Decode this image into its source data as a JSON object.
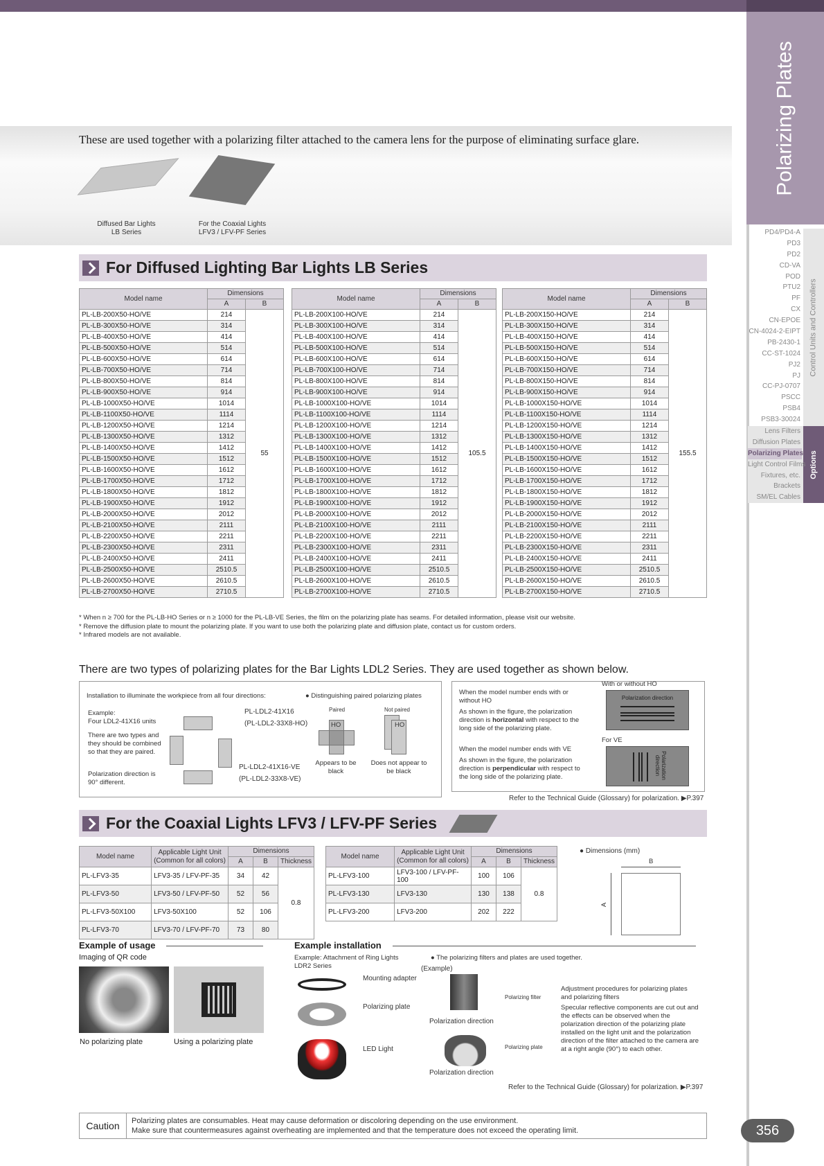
{
  "sidebar": {
    "title": "Polarizing Plates",
    "group1_label": "Control Units and Controllers",
    "group1": [
      "PD4/PD4-A",
      "PD3",
      "PD2",
      "CD-VA",
      "POD",
      "PTU2",
      "PF",
      "CX",
      "CN-EPOE",
      "CN-4024-2-EIPT",
      "PB-2430-1",
      "CC-ST-1024",
      "PJ2",
      "PJ",
      "CC-PJ-0707",
      "PSCC",
      "PSB4",
      "PSB3-30024"
    ],
    "group2_label": "Options",
    "group2": [
      "Lens Filters",
      "Diffusion Plates",
      "Polarizing Plates",
      "Light Control Films",
      "Fixtures, etc.",
      "Brackets",
      "SM/EL Cables"
    ],
    "active": "Polarizing Plates",
    "accent": "#6f5b77",
    "title_bg": "#a797ad"
  },
  "intro": {
    "text": "These are used together with a polarizing filter attached to the camera lens for the purpose of eliminating surface glare.",
    "img1_caption": [
      "Diffused Bar Lights",
      "LB Series"
    ],
    "img2_caption": [
      "For the Coaxial Lights",
      "LFV3 / LFV-PF Series"
    ]
  },
  "lb": {
    "title": "For Diffused Lighting Bar Lights LB Series",
    "headers": {
      "model": "Model name",
      "dims": "Dimensions",
      "a": "A",
      "b": "B"
    },
    "tables": [
      {
        "b": "55",
        "rows": [
          [
            "PL-LB-200X50-HO/VE",
            "214"
          ],
          [
            "PL-LB-300X50-HO/VE",
            "314"
          ],
          [
            "PL-LB-400X50-HO/VE",
            "414"
          ],
          [
            "PL-LB-500X50-HO/VE",
            "514"
          ],
          [
            "PL-LB-600X50-HO/VE",
            "614"
          ],
          [
            "PL-LB-700X50-HO/VE",
            "714"
          ],
          [
            "PL-LB-800X50-HO/VE",
            "814"
          ],
          [
            "PL-LB-900X50-HO/VE",
            "914"
          ],
          [
            "PL-LB-1000X50-HO/VE",
            "1014"
          ],
          [
            "PL-LB-1100X50-HO/VE",
            "1114"
          ],
          [
            "PL-LB-1200X50-HO/VE",
            "1214"
          ],
          [
            "PL-LB-1300X50-HO/VE",
            "1312"
          ],
          [
            "PL-LB-1400X50-HO/VE",
            "1412"
          ],
          [
            "PL-LB-1500X50-HO/VE",
            "1512"
          ],
          [
            "PL-LB-1600X50-HO/VE",
            "1612"
          ],
          [
            "PL-LB-1700X50-HO/VE",
            "1712"
          ],
          [
            "PL-LB-1800X50-HO/VE",
            "1812"
          ],
          [
            "PL-LB-1900X50-HO/VE",
            "1912"
          ],
          [
            "PL-LB-2000X50-HO/VE",
            "2012"
          ],
          [
            "PL-LB-2100X50-HO/VE",
            "2111"
          ],
          [
            "PL-LB-2200X50-HO/VE",
            "2211"
          ],
          [
            "PL-LB-2300X50-HO/VE",
            "2311"
          ],
          [
            "PL-LB-2400X50-HO/VE",
            "2411"
          ],
          [
            "PL-LB-2500X50-HO/VE",
            "2510.5"
          ],
          [
            "PL-LB-2600X50-HO/VE",
            "2610.5"
          ],
          [
            "PL-LB-2700X50-HO/VE",
            "2710.5"
          ]
        ]
      },
      {
        "b": "105.5",
        "rows": [
          [
            "PL-LB-200X100-HO/VE",
            "214"
          ],
          [
            "PL-LB-300X100-HO/VE",
            "314"
          ],
          [
            "PL-LB-400X100-HO/VE",
            "414"
          ],
          [
            "PL-LB-500X100-HO/VE",
            "514"
          ],
          [
            "PL-LB-600X100-HO/VE",
            "614"
          ],
          [
            "PL-LB-700X100-HO/VE",
            "714"
          ],
          [
            "PL-LB-800X100-HO/VE",
            "814"
          ],
          [
            "PL-LB-900X100-HO/VE",
            "914"
          ],
          [
            "PL-LB-1000X100-HO/VE",
            "1014"
          ],
          [
            "PL-LB-1100X100-HO/VE",
            "1114"
          ],
          [
            "PL-LB-1200X100-HO/VE",
            "1214"
          ],
          [
            "PL-LB-1300X100-HO/VE",
            "1312"
          ],
          [
            "PL-LB-1400X100-HO/VE",
            "1412"
          ],
          [
            "PL-LB-1500X100-HO/VE",
            "1512"
          ],
          [
            "PL-LB-1600X100-HO/VE",
            "1612"
          ],
          [
            "PL-LB-1700X100-HO/VE",
            "1712"
          ],
          [
            "PL-LB-1800X100-HO/VE",
            "1812"
          ],
          [
            "PL-LB-1900X100-HO/VE",
            "1912"
          ],
          [
            "PL-LB-2000X100-HO/VE",
            "2012"
          ],
          [
            "PL-LB-2100X100-HO/VE",
            "2111"
          ],
          [
            "PL-LB-2200X100-HO/VE",
            "2211"
          ],
          [
            "PL-LB-2300X100-HO/VE",
            "2311"
          ],
          [
            "PL-LB-2400X100-HO/VE",
            "2411"
          ],
          [
            "PL-LB-2500X100-HO/VE",
            "2510.5"
          ],
          [
            "PL-LB-2600X100-HO/VE",
            "2610.5"
          ],
          [
            "PL-LB-2700X100-HO/VE",
            "2710.5"
          ]
        ]
      },
      {
        "b": "155.5",
        "rows": [
          [
            "PL-LB-200X150-HO/VE",
            "214"
          ],
          [
            "PL-LB-300X150-HO/VE",
            "314"
          ],
          [
            "PL-LB-400X150-HO/VE",
            "414"
          ],
          [
            "PL-LB-500X150-HO/VE",
            "514"
          ],
          [
            "PL-LB-600X150-HO/VE",
            "614"
          ],
          [
            "PL-LB-700X150-HO/VE",
            "714"
          ],
          [
            "PL-LB-800X150-HO/VE",
            "814"
          ],
          [
            "PL-LB-900X150-HO/VE",
            "914"
          ],
          [
            "PL-LB-1000X150-HO/VE",
            "1014"
          ],
          [
            "PL-LB-1100X150-HO/VE",
            "1114"
          ],
          [
            "PL-LB-1200X150-HO/VE",
            "1214"
          ],
          [
            "PL-LB-1300X150-HO/VE",
            "1312"
          ],
          [
            "PL-LB-1400X150-HO/VE",
            "1412"
          ],
          [
            "PL-LB-1500X150-HO/VE",
            "1512"
          ],
          [
            "PL-LB-1600X150-HO/VE",
            "1612"
          ],
          [
            "PL-LB-1700X150-HO/VE",
            "1712"
          ],
          [
            "PL-LB-1800X150-HO/VE",
            "1812"
          ],
          [
            "PL-LB-1900X150-HO/VE",
            "1912"
          ],
          [
            "PL-LB-2000X150-HO/VE",
            "2012"
          ],
          [
            "PL-LB-2100X150-HO/VE",
            "2111"
          ],
          [
            "PL-LB-2200X150-HO/VE",
            "2211"
          ],
          [
            "PL-LB-2300X150-HO/VE",
            "2311"
          ],
          [
            "PL-LB-2400X150-HO/VE",
            "2411"
          ],
          [
            "PL-LB-2500X150-HO/VE",
            "2510.5"
          ],
          [
            "PL-LB-2600X150-HO/VE",
            "2610.5"
          ],
          [
            "PL-LB-2700X150-HO/VE",
            "2710.5"
          ]
        ]
      }
    ],
    "notes": [
      "* When n ≥ 700 for the PL-LB-HO Series or n ≥ 1000 for the PL-LB-VE Series, the film on the polarizing plate has seams. For detailed information, please visit our website.",
      "* Remove the diffusion plate to mount the polarizing plate. If you want to use both the polarizing plate and diffusion plate, contact us for custom orders.",
      "* Infrared models are not available."
    ]
  },
  "ldl2": {
    "heading": "There are two types of polarizing plates for the Bar Lights LDL2 Series. They are used together as shown below.",
    "install": "Installation to illuminate the workpiece from all four directions:",
    "example": "Example:",
    "example_units": "Four LDL2-41X16 units",
    "two_types": "There are two types and they should be combined so that they are paired.",
    "pol_diff": "Polarization direction is 90° different.",
    "pl1": "PL-LDL2-41X16",
    "pl1b": "(PL-LDL2-33X8-HO)",
    "pl2": "PL-LDL2-41X16-VE",
    "pl2b": "(PL-LDL2-33X8-VE)",
    "distinguish": "● Distinguishing paired polarizing plates",
    "paired": "Paired",
    "not_paired": "Not paired",
    "ho": "HO",
    "appears": "Appears to be black",
    "not_appears": "Does not appear to be black",
    "ho_title": "When the model number ends with or without HO",
    "ho_desc_pre": "As shown in the figure, the polarization direction is ",
    "ho_bold": "horizontal",
    "ho_desc_post": " with respect to the long side of the polarizing plate.",
    "ve_title": "When the model number ends with VE",
    "ve_desc_pre": "As shown in the figure, the polarization direction is ",
    "ve_bold": "perpendicular",
    "ve_desc_post": " with respect to the long side of the polarizing plate.",
    "fig_ho": "With or without HO",
    "fig_ve": "For VE",
    "pol_dir": "Polarization direction",
    "pol_dir_v": "Polarization direction",
    "ref": "Refer to the Technical Guide (Glossary) for polarization. ▶P.397"
  },
  "coax": {
    "title": "For the Coaxial Lights LFV3 / LFV-PF Series",
    "headers": {
      "model": "Model name",
      "unit": "Applicable Light Unit",
      "unit2": "(Common for all colors)",
      "dims": "Dimensions",
      "a": "A",
      "b": "B",
      "t": "Thickness"
    },
    "table1": {
      "t": "0.8",
      "rows": [
        [
          "PL-LFV3-35",
          "LFV3-35 / LFV-PF-35",
          "34",
          "42"
        ],
        [
          "PL-LFV3-50",
          "LFV3-50 / LFV-PF-50",
          "52",
          "56"
        ],
        [
          "PL-LFV3-50X100",
          "LFV3-50X100",
          "52",
          "106"
        ],
        [
          "PL-LFV3-70",
          "LFV3-70 / LFV-PF-70",
          "73",
          "80"
        ]
      ]
    },
    "table2": {
      "t": "0.8",
      "rows": [
        [
          "PL-LFV3-100",
          "LFV3-100 / LFV-PF-100",
          "100",
          "106"
        ],
        [
          "PL-LFV3-130",
          "LFV3-130",
          "130",
          "138"
        ],
        [
          "PL-LFV3-200",
          "LFV3-200",
          "202",
          "222"
        ]
      ]
    },
    "dims_label": "● Dimensions (mm)",
    "dim_a": "A",
    "dim_b": "B"
  },
  "usage": {
    "title": "Example of usage",
    "subtitle": "Imaging of QR code",
    "cap1": "No polarizing plate",
    "cap2": "Using a polarizing plate"
  },
  "install": {
    "title": "Example installation",
    "sub": "Example: Attachment of Ring Lights LDR2 Series",
    "mount": "Mounting adapter",
    "plate": "Polarizing plate",
    "led": "LED Light",
    "together": "● The polarizing filters and plates are used together.",
    "example": "(Example)",
    "filter": "Polarizing filter",
    "plate2": "Polarizing plate",
    "dir1": "Polarization direction",
    "dir2": "Polarization direction",
    "adj_title": "Adjustment procedures for polarizing plates and polarizing filters",
    "adj_desc": "Specular reflective components are cut out and the effects can be observed when the polarization direction of the polarizing plate installed on the light unit and the polarization direction of the filter attached to the camera are at a right angle (90°) to each other.",
    "ref": "Refer to the Technical Guide (Glossary) for polarization. ▶P.397"
  },
  "caution": {
    "label": "Caution",
    "line1": "Polarizing plates are consumables. Heat may cause deformation or discoloring depending on the use environment.",
    "line2": "Make sure that countermeasures against overheating are implemented and that the temperature does not exceed the operating limit."
  },
  "page": "356"
}
